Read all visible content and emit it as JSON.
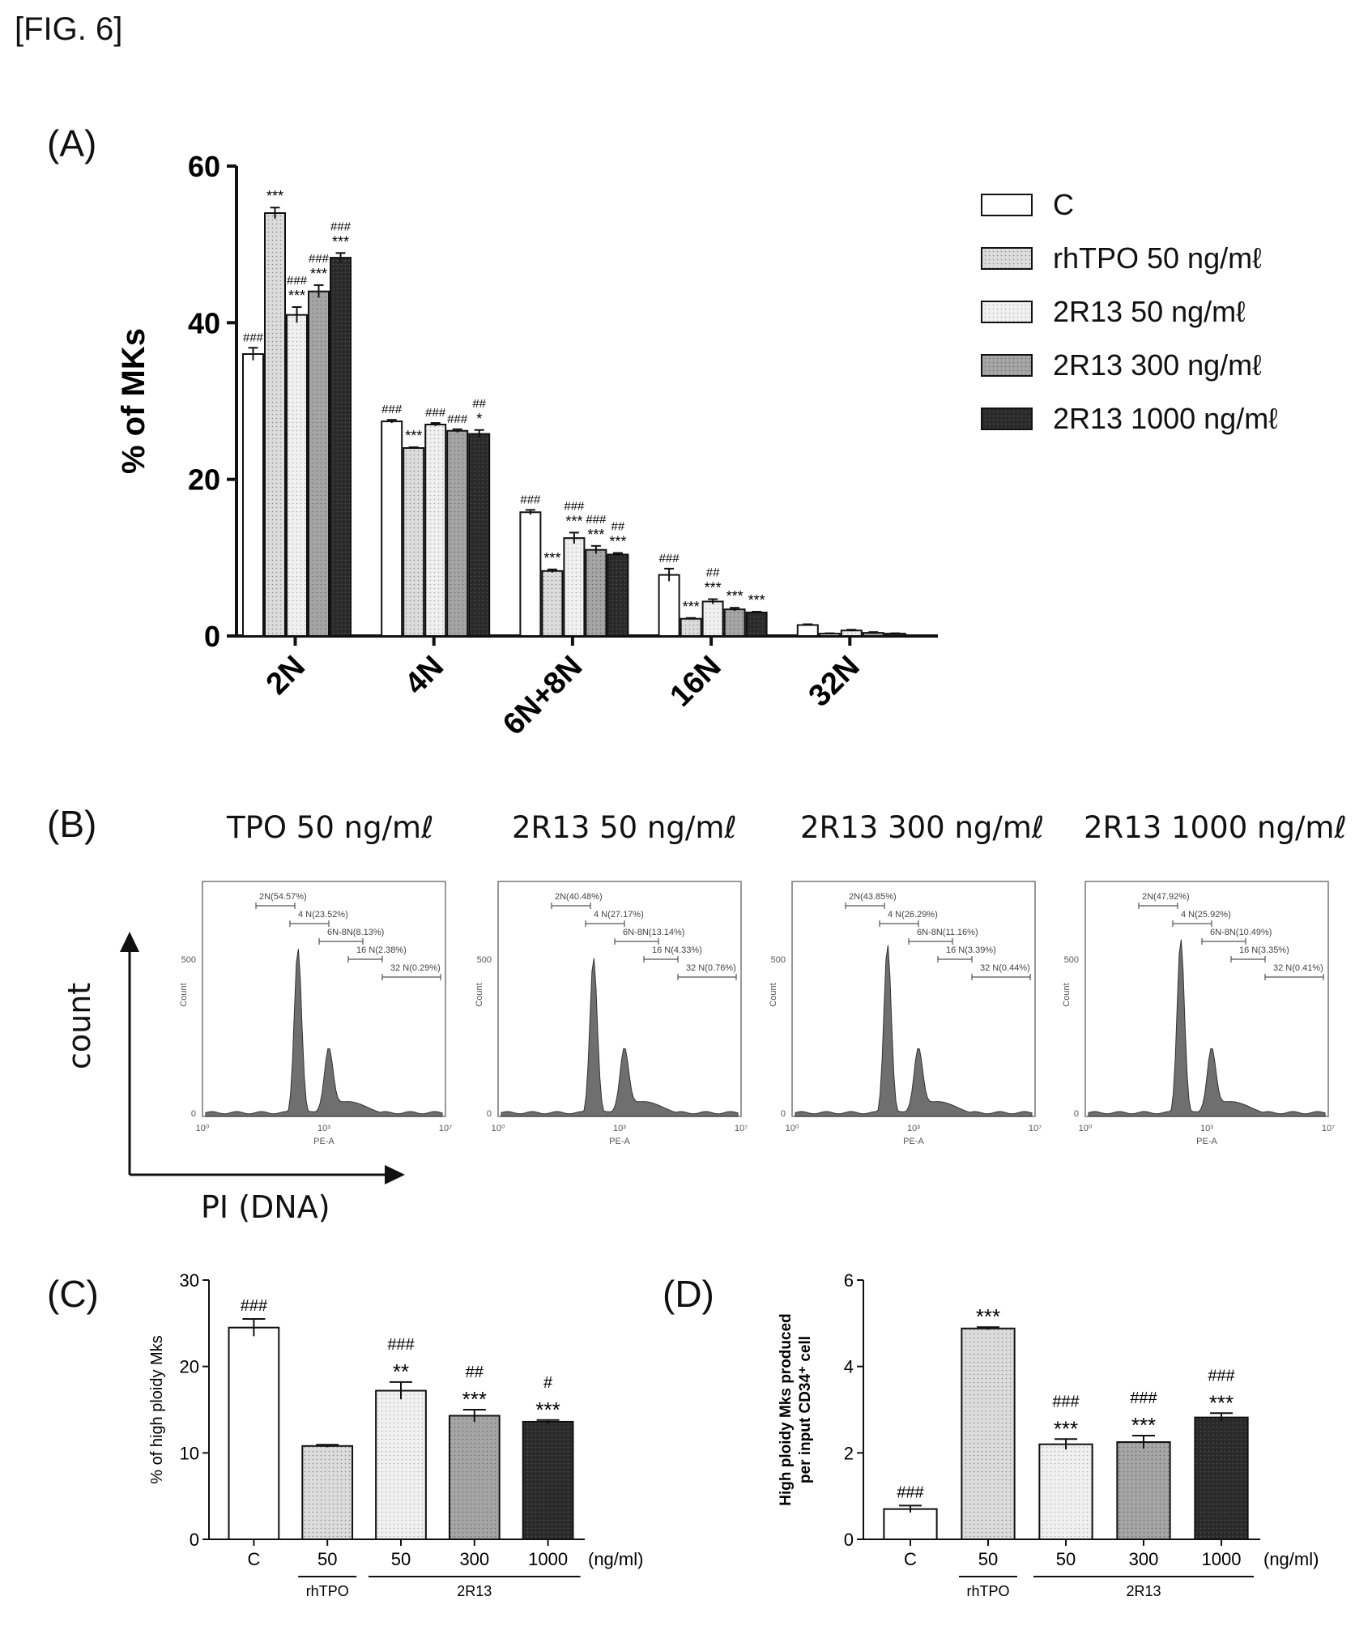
{
  "figure_label": "[FIG. 6]",
  "panels": {
    "A": "(A)",
    "B": "(B)",
    "C": "(C)",
    "D": "(D)"
  },
  "colors": {
    "C": "#ffffff",
    "rhTPO 50": "#d8d8d8",
    "2R13 50": "#ececec",
    "2R13 300": "#a8a8a8",
    "2R13 1000": "#2e2e2e",
    "stroke": "#111111"
  },
  "chart_data": [
    {
      "id": "A",
      "type": "bar",
      "ylabel": "% of MKs",
      "ylim": [
        0,
        60
      ],
      "yticks": [
        "0",
        "20",
        "40",
        "60"
      ],
      "categories": [
        "2N",
        "4N",
        "6N+8N",
        "16N",
        "32N"
      ],
      "legend_placement": "right",
      "series": [
        {
          "name": "C",
          "values": [
            36,
            27.4,
            15.8,
            7.8,
            1.4
          ],
          "errors": [
            0.8,
            0.2,
            0.3,
            0.8,
            0.1
          ]
        },
        {
          "name": "rhTPO 50 ng/mℓ",
          "values": [
            54,
            24,
            8.3,
            2.2,
            0.3
          ],
          "errors": [
            0.7,
            0.1,
            0.2,
            0.1,
            0.05
          ]
        },
        {
          "name": "2R13 50 ng/mℓ",
          "values": [
            41,
            27,
            12.5,
            4.4,
            0.7
          ],
          "errors": [
            1.0,
            0.2,
            0.7,
            0.3,
            0.1
          ]
        },
        {
          "name": "2R13 300 ng/mℓ",
          "values": [
            44,
            26.2,
            11,
            3.4,
            0.4
          ],
          "errors": [
            0.8,
            0.2,
            0.5,
            0.2,
            0.1
          ]
        },
        {
          "name": "2R13 1000 ng/mℓ",
          "values": [
            48.3,
            25.8,
            10.4,
            3.0,
            0.3
          ],
          "errors": [
            0.6,
            0.5,
            0.2,
            0.1,
            0.05
          ]
        }
      ],
      "annotations": [
        [
          "###",
          "",
          "###",
          "###"
        ],
        [
          "###",
          "",
          "###",
          "###"
        ],
        [
          "###",
          "",
          "###",
          "###"
        ],
        [
          "###",
          "",
          "##",
          "",
          ""
        ],
        [
          "",
          "",
          "",
          "",
          ""
        ]
      ],
      "stars": [
        [
          "",
          "***",
          "***",
          "***",
          "***"
        ],
        [
          "",
          "***",
          "",
          "",
          "*"
        ],
        [
          "",
          "***",
          "***",
          "***",
          "***"
        ],
        [
          "",
          "***",
          "***",
          "***",
          "***"
        ],
        [
          "",
          "",
          "",
          "",
          ""
        ]
      ],
      "hash": [
        [
          "###",
          "",
          "###",
          "###",
          "###"
        ],
        [
          "###",
          "",
          "###",
          "###",
          "##"
        ],
        [
          "###",
          "",
          "###",
          "###",
          "##"
        ],
        [
          "###",
          "",
          "##",
          "",
          ""
        ],
        [
          "",
          "",
          "",
          "",
          ""
        ]
      ]
    },
    {
      "id": "C",
      "type": "bar",
      "ylabel": "% of high ploidy Mks",
      "ylim": [
        0,
        30
      ],
      "yticks": [
        "0",
        "10",
        "20",
        "30"
      ],
      "categories": [
        "C",
        "50",
        "50",
        "300",
        "1000"
      ],
      "unit": "(ng/ml)",
      "groups": [
        "rhTPO",
        "2R13"
      ],
      "values": [
        24.5,
        10.8,
        17.2,
        14.3,
        13.6
      ],
      "errors": [
        1.0,
        0.15,
        1.0,
        0.7,
        0.2
      ],
      "stars": [
        "",
        "",
        "**",
        "***",
        "***"
      ],
      "hash": [
        "###",
        "",
        "###",
        "##",
        "#"
      ]
    },
    {
      "id": "D",
      "type": "bar",
      "ylabel": "High ploidy Mks produced per input CD34⁺ cell",
      "ylim": [
        0,
        6
      ],
      "yticks": [
        "0",
        "2",
        "4",
        "6"
      ],
      "categories": [
        "C",
        "50",
        "50",
        "300",
        "1000"
      ],
      "unit": "(ng/ml)",
      "groups": [
        "rhTPO",
        "2R13"
      ],
      "values": [
        0.7,
        4.88,
        2.2,
        2.25,
        2.82
      ],
      "errors": [
        0.08,
        0.03,
        0.12,
        0.15,
        0.1
      ],
      "stars": [
        "",
        "***",
        "***",
        "***",
        "***"
      ],
      "hash": [
        "###",
        "",
        "###",
        "###",
        "###"
      ]
    }
  ],
  "flow": {
    "axis_y": "count",
    "axis_x": "PI (DNA)",
    "panels": [
      {
        "title": "TPO 50 ng/mℓ",
        "gates": [
          "2N(54.57%)",
          "4 N(23.52%)",
          "6N-8N(8.13%)",
          "16 N(2.38%)",
          "32 N(0.29%)"
        ]
      },
      {
        "title": "2R13 50 ng/mℓ",
        "gates": [
          "2N(40.48%)",
          "4 N(27.17%)",
          "6N-8N(13.14%)",
          "16 N(4.33%)",
          "32 N(0.76%)"
        ]
      },
      {
        "title": "2R13 300 ng/mℓ",
        "gates": [
          "2N(43.85%)",
          "4 N(26.29%)",
          "6N-8N(11.16%)",
          "16 N(3.39%)",
          "32 N(0.44%)"
        ]
      },
      {
        "title": "2R13 1000 ng/mℓ",
        "gates": [
          "2N(47.92%)",
          "4 N(25.92%)",
          "6N-8N(10.49%)",
          "16 N(3.35%)",
          "32 N(0.41%)"
        ]
      }
    ],
    "plot_ylabel": "Count",
    "plot_xlabel": "PE-A",
    "ytick_top": "500",
    "ytick_bottom": "0",
    "xticks": [
      "10⁰",
      "10³",
      "10⁷"
    ]
  }
}
